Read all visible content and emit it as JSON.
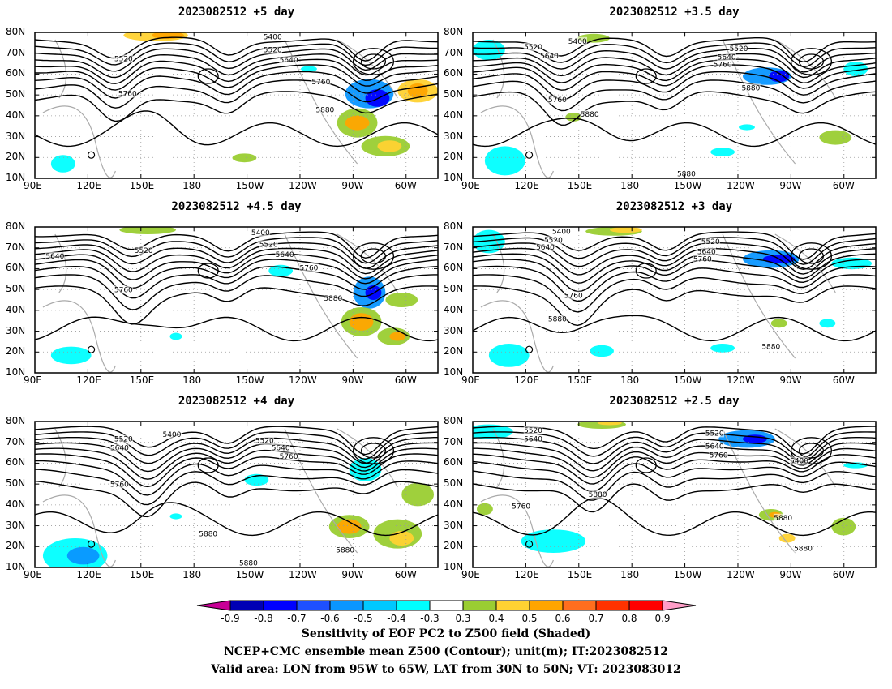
{
  "panels": [
    {
      "title": "2023082512 +5 day"
    },
    {
      "title": "2023082512 +3.5 day"
    },
    {
      "title": "2023082512 +4.5 day"
    },
    {
      "title": "2023082512 +3 day"
    },
    {
      "title": "2023082512 +4 day"
    },
    {
      "title": "2023082512 +2.5 day"
    }
  ],
  "axes": {
    "lon_labels": [
      "90E",
      "120E",
      "150E",
      "180",
      "150W",
      "120W",
      "90W",
      "60W"
    ],
    "lat_labels": [
      "80N",
      "70N",
      "60N",
      "50N",
      "40N",
      "30N",
      "20N",
      "10N"
    ]
  },
  "contour_labels": [
    [
      "5400",
      "5520",
      "5520",
      "5640",
      "5760",
      "5760",
      "5880"
    ],
    [
      "5400",
      "5520",
      "5640",
      "5520",
      "5640",
      "5760",
      "5760",
      "5880",
      "5880",
      "5880"
    ],
    [
      "5400",
      "5520",
      "5520",
      "5640",
      "5640",
      "5760",
      "5760",
      "5880"
    ],
    [
      "5400",
      "5520",
      "5640",
      "5520",
      "5640",
      "5760",
      "5760",
      "5880",
      "5880"
    ],
    [
      "5520",
      "5640",
      "5400",
      "5520",
      "5640",
      "5760",
      "5760",
      "5880",
      "5880",
      "5880"
    ],
    [
      "5520",
      "5640",
      "5520",
      "5640",
      "5760",
      "5400",
      "5880",
      "5760",
      "5880",
      "5880"
    ]
  ],
  "colorbar": {
    "labels": [
      "-0.9",
      "-0.8",
      "-0.7",
      "-0.6",
      "-0.5",
      "-0.4",
      "-0.3",
      "0.3",
      "0.4",
      "0.5",
      "0.6",
      "0.7",
      "0.8",
      "0.9"
    ],
    "colors": [
      "#c80096",
      "#0000b4",
      "#0000ff",
      "#1e50ff",
      "#0a96ff",
      "#00c8ff",
      "#00ffff",
      "#ffffff",
      "#9acd32",
      "#ffd232",
      "#ffa500",
      "#ff6e1e",
      "#ff3200",
      "#ff0000",
      "#ff9ec8"
    ]
  },
  "caption": {
    "line1": "Sensitivity of EOF PC2 to Z500 field (Shaded)",
    "line2": "NCEP+CMC ensemble mean Z500 (Contour); unit(m); IT:2023082512",
    "line3": "Valid area: LON from 95W to 65W, LAT from 30N to 50N; VT: 2023083012"
  }
}
